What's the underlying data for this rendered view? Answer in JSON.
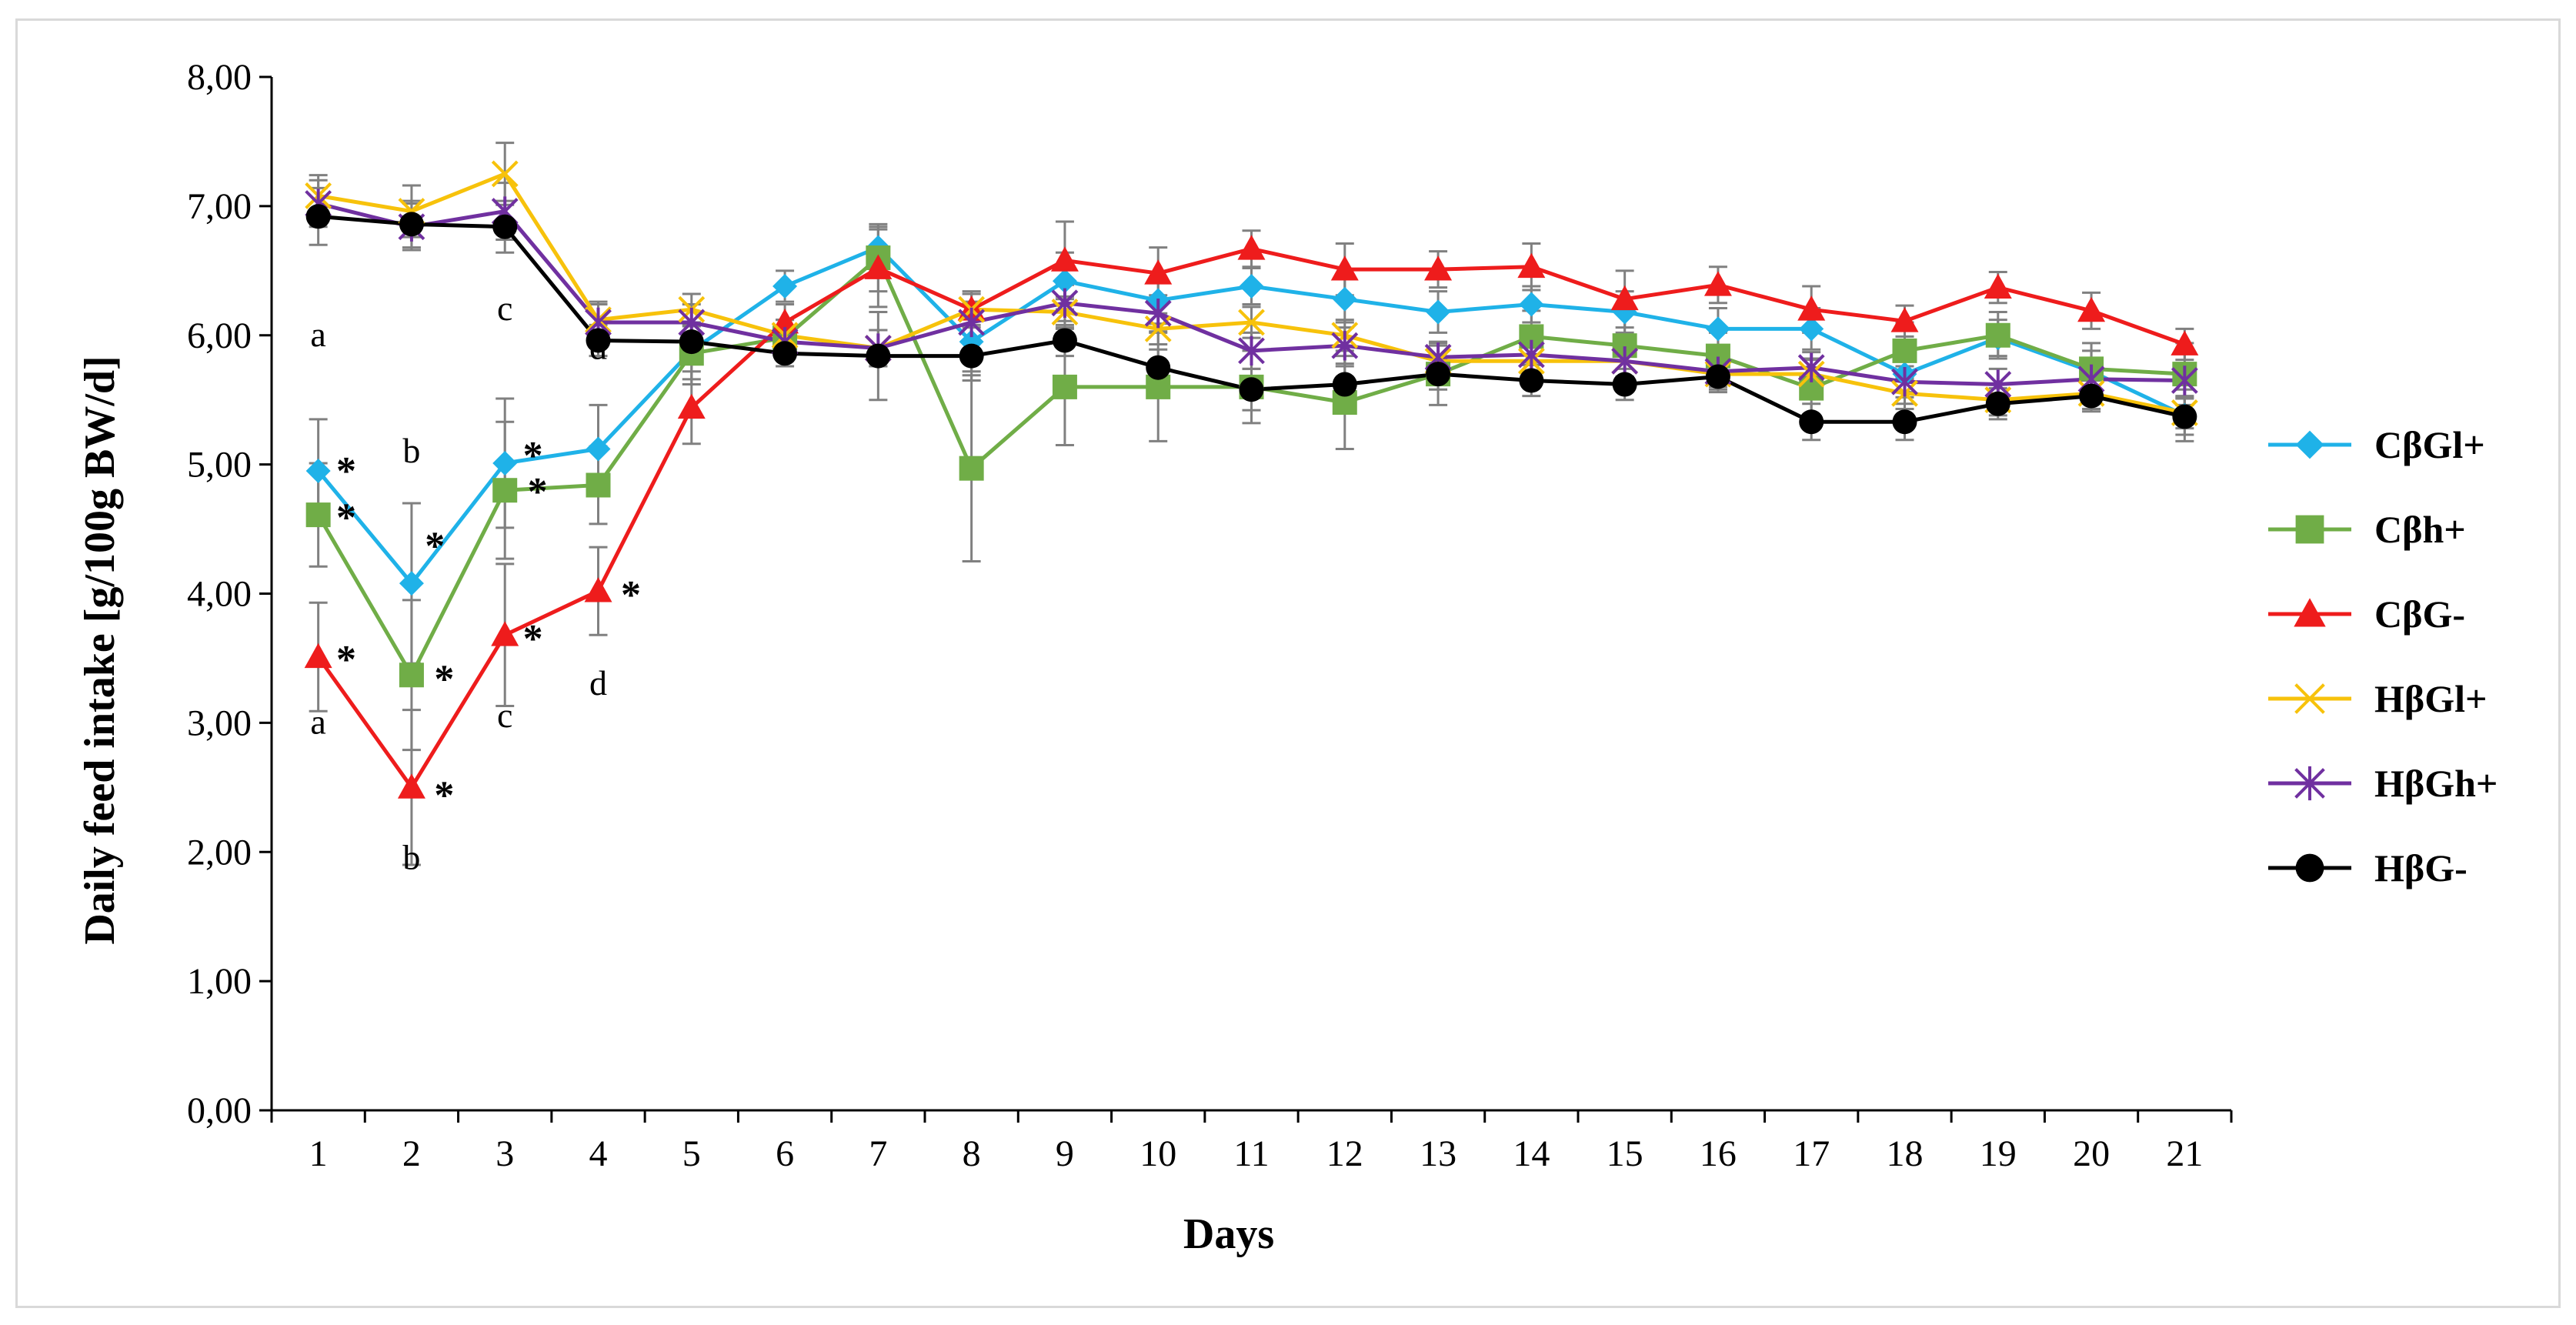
{
  "chart_data": {
    "type": "line",
    "title": "",
    "xlabel": "Days",
    "ylabel": "Daily feed intake [g/100g BW/d]",
    "ylim": [
      0,
      8
    ],
    "yticks": [
      "0,00",
      "1,00",
      "2,00",
      "3,00",
      "4,00",
      "5,00",
      "6,00",
      "7,00",
      "8,00"
    ],
    "categories": [
      "1",
      "2",
      "3",
      "4",
      "5",
      "6",
      "7",
      "8",
      "9",
      "10",
      "11",
      "12",
      "13",
      "14",
      "15",
      "16",
      "17",
      "18",
      "19",
      "20",
      "21"
    ],
    "legend_position": "right",
    "series": [
      {
        "name": "CβGl+",
        "color": "#1fb2e8",
        "marker": "diamond",
        "values": [
          4.95,
          4.08,
          5.01,
          5.12,
          5.88,
          6.38,
          6.68,
          5.95,
          6.42,
          6.27,
          6.38,
          6.28,
          6.18,
          6.24,
          6.18,
          6.05,
          6.05,
          5.7,
          5.98,
          5.72,
          5.38
        ],
        "errors": [
          0.4,
          0.62,
          0.5,
          0.34,
          0.22,
          0.12,
          0.16,
          0.3,
          0.22,
          0.18,
          0.14,
          0.18,
          0.16,
          0.14,
          0.16,
          0.16,
          0.16,
          0.14,
          0.14,
          0.16,
          0.2
        ]
      },
      {
        "name": "Cβh+",
        "color": "#70ad47",
        "marker": "square",
        "values": [
          4.61,
          3.37,
          4.8,
          4.84,
          5.86,
          5.98,
          6.6,
          4.97,
          5.6,
          5.6,
          5.6,
          5.48,
          5.7,
          5.99,
          5.92,
          5.84,
          5.59,
          5.88,
          6.0,
          5.74,
          5.7
        ],
        "errors": [
          0.4,
          0.58,
          0.53,
          0.3,
          0.24,
          0.14,
          0.26,
          0.72,
          0.45,
          0.42,
          0.28,
          0.36,
          0.24,
          0.2,
          0.26,
          0.18,
          0.22,
          0.22,
          0.18,
          0.2,
          0.24
        ]
      },
      {
        "name": "CβG-",
        "color": "#ee1c1c",
        "marker": "triangle",
        "values": [
          3.51,
          2.5,
          3.68,
          4.02,
          5.44,
          6.1,
          6.52,
          6.2,
          6.58,
          6.48,
          6.67,
          6.51,
          6.51,
          6.53,
          6.28,
          6.39,
          6.2,
          6.11,
          6.37,
          6.19,
          5.93
        ],
        "errors": [
          0.42,
          0.6,
          0.55,
          0.34,
          0.28,
          0.14,
          0.3,
          0.14,
          0.3,
          0.2,
          0.14,
          0.2,
          0.14,
          0.18,
          0.22,
          0.14,
          0.18,
          0.12,
          0.12,
          0.14,
          0.12
        ]
      },
      {
        "name": "HβGl+",
        "color": "#f7c20b",
        "marker": "x",
        "values": [
          7.08,
          6.96,
          7.25,
          6.12,
          6.2,
          6.0,
          5.9,
          6.2,
          6.18,
          6.05,
          6.1,
          6.0,
          5.8,
          5.8,
          5.8,
          5.7,
          5.7,
          5.55,
          5.5,
          5.55,
          5.4
        ],
        "errors": [
          0.16,
          0.2,
          0.24,
          0.14,
          0.12,
          0.12,
          0.14,
          0.12,
          0.12,
          0.12,
          0.12,
          0.12,
          0.12,
          0.12,
          0.12,
          0.12,
          0.12,
          0.12,
          0.12,
          0.12,
          0.12
        ]
      },
      {
        "name": "HβGh+",
        "color": "#7030a0",
        "marker": "star",
        "values": [
          7.02,
          6.84,
          6.96,
          6.1,
          6.1,
          5.95,
          5.9,
          6.1,
          6.25,
          6.17,
          5.88,
          5.92,
          5.83,
          5.85,
          5.8,
          5.72,
          5.75,
          5.64,
          5.62,
          5.66,
          5.65
        ],
        "errors": [
          0.18,
          0.18,
          0.22,
          0.14,
          0.14,
          0.12,
          0.14,
          0.16,
          0.14,
          0.14,
          0.14,
          0.14,
          0.12,
          0.12,
          0.12,
          0.12,
          0.12,
          0.12,
          0.12,
          0.12,
          0.12
        ]
      },
      {
        "name": "HβG-",
        "color": "#000000",
        "marker": "circle",
        "values": [
          6.92,
          6.86,
          6.84,
          5.96,
          5.95,
          5.86,
          5.84,
          5.84,
          5.96,
          5.75,
          5.58,
          5.62,
          5.7,
          5.65,
          5.62,
          5.68,
          5.33,
          5.33,
          5.47,
          5.53,
          5.37
        ],
        "errors": [
          0.22,
          0.18,
          0.2,
          0.12,
          0.12,
          0.1,
          0.34,
          0.12,
          0.12,
          0.14,
          0.16,
          0.14,
          0.12,
          0.12,
          0.12,
          0.12,
          0.14,
          0.14,
          0.12,
          0.12,
          0.14
        ]
      }
    ],
    "annotations": [
      {
        "text": "a",
        "x": 1,
        "y": 6.0
      },
      {
        "text": "a",
        "x": 1,
        "y": 3.0
      },
      {
        "text": "b",
        "x": 2,
        "y": 5.1
      },
      {
        "text": "b",
        "x": 2,
        "y": 1.95
      },
      {
        "text": "c",
        "x": 3,
        "y": 6.2
      },
      {
        "text": "c",
        "x": 3,
        "y": 3.05
      },
      {
        "text": "d",
        "x": 4,
        "y": 5.9
      },
      {
        "text": "d",
        "x": 4,
        "y": 3.3
      },
      {
        "text": "*",
        "x": 1.3,
        "y": 4.98
      },
      {
        "text": "*",
        "x": 1.3,
        "y": 4.62
      },
      {
        "text": "*",
        "x": 1.3,
        "y": 3.52
      },
      {
        "text": "*",
        "x": 2.25,
        "y": 4.4
      },
      {
        "text": "*",
        "x": 2.35,
        "y": 3.37
      },
      {
        "text": "*",
        "x": 2.35,
        "y": 2.47
      },
      {
        "text": "*",
        "x": 3.3,
        "y": 5.1
      },
      {
        "text": "*",
        "x": 3.35,
        "y": 4.82
      },
      {
        "text": "*",
        "x": 3.3,
        "y": 3.68
      },
      {
        "text": "*",
        "x": 4.35,
        "y": 4.02
      }
    ]
  }
}
